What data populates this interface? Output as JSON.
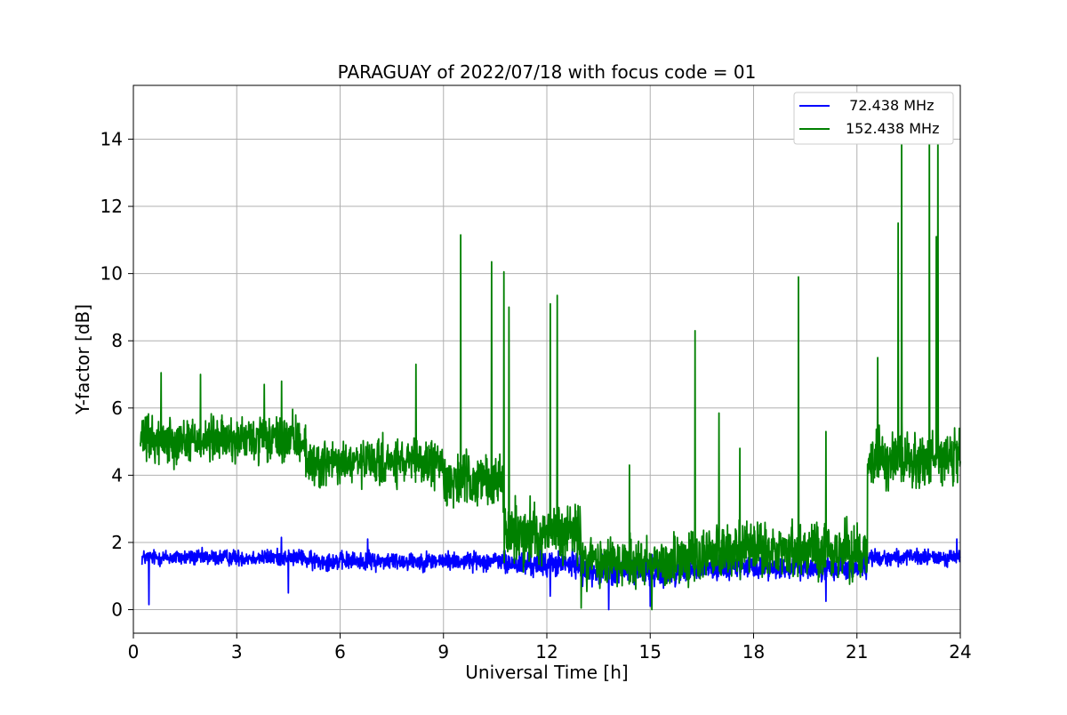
{
  "chart_data": {
    "type": "line",
    "title": "PARAGUAY of 2022/07/18 with focus code = 01",
    "xlabel": "Universal Time [h]",
    "ylabel": "Y-factor [dB]",
    "xlim": [
      0,
      24
    ],
    "ylim": [
      -0.7,
      15.6
    ],
    "xticks": [
      0,
      3,
      6,
      9,
      12,
      15,
      18,
      21,
      24
    ],
    "yticks": [
      0,
      2,
      4,
      6,
      8,
      10,
      12,
      14
    ],
    "grid": true,
    "legend_position": "top-right",
    "series": [
      {
        "name": "  72.438 MHz",
        "color": "#0000ff",
        "baseline_segments": [
          {
            "from": 0.25,
            "to": 5.0,
            "level": 1.55,
            "spread": 0.35
          },
          {
            "from": 5.0,
            "to": 10.8,
            "level": 1.45,
            "spread": 0.4
          },
          {
            "from": 10.8,
            "to": 13.0,
            "level": 1.35,
            "spread": 0.55
          },
          {
            "from": 13.0,
            "to": 16.5,
            "level": 1.15,
            "spread": 0.6
          },
          {
            "from": 16.5,
            "to": 21.3,
            "level": 1.25,
            "spread": 0.5
          },
          {
            "from": 21.3,
            "to": 24.0,
            "level": 1.55,
            "spread": 0.35
          }
        ],
        "spikes": [
          {
            "x": 0.45,
            "y": 0.15
          },
          {
            "x": 4.3,
            "y": 2.15
          },
          {
            "x": 4.5,
            "y": 0.5
          },
          {
            "x": 6.8,
            "y": 2.1
          },
          {
            "x": 12.1,
            "y": 0.4
          },
          {
            "x": 13.8,
            "y": 0.0
          },
          {
            "x": 15.0,
            "y": 0.1
          },
          {
            "x": 21.2,
            "y": 2.1
          },
          {
            "x": 23.9,
            "y": 2.1
          },
          {
            "x": 20.1,
            "y": 0.25
          }
        ]
      },
      {
        "name": "152.438 MHz",
        "color": "#008000",
        "baseline_segments": [
          {
            "from": 0.2,
            "to": 5.0,
            "level": 5.05,
            "spread": 1.0
          },
          {
            "from": 5.0,
            "to": 9.0,
            "level": 4.35,
            "spread": 1.0
          },
          {
            "from": 9.0,
            "to": 10.75,
            "level": 3.85,
            "spread": 1.1
          },
          {
            "from": 10.75,
            "to": 13.0,
            "level": 2.3,
            "spread": 1.3
          },
          {
            "from": 13.0,
            "to": 16.5,
            "level": 1.45,
            "spread": 1.2
          },
          {
            "from": 16.5,
            "to": 21.3,
            "level": 1.75,
            "spread": 1.2
          },
          {
            "from": 21.3,
            "to": 24.0,
            "level": 4.5,
            "spread": 1.2
          }
        ],
        "spikes": [
          {
            "x": 0.8,
            "y": 7.05
          },
          {
            "x": 1.95,
            "y": 7.0
          },
          {
            "x": 3.8,
            "y": 6.7
          },
          {
            "x": 4.3,
            "y": 6.8
          },
          {
            "x": 8.2,
            "y": 7.3
          },
          {
            "x": 9.5,
            "y": 11.15
          },
          {
            "x": 10.4,
            "y": 10.35
          },
          {
            "x": 10.75,
            "y": 10.05
          },
          {
            "x": 10.9,
            "y": 9.0
          },
          {
            "x": 12.1,
            "y": 9.1
          },
          {
            "x": 12.3,
            "y": 9.35
          },
          {
            "x": 14.4,
            "y": 4.3
          },
          {
            "x": 16.3,
            "y": 8.3
          },
          {
            "x": 17.0,
            "y": 5.85
          },
          {
            "x": 17.6,
            "y": 4.8
          },
          {
            "x": 19.3,
            "y": 9.9
          },
          {
            "x": 20.1,
            "y": 5.3
          },
          {
            "x": 21.6,
            "y": 7.5
          },
          {
            "x": 22.2,
            "y": 11.5
          },
          {
            "x": 22.3,
            "y": 14.25
          },
          {
            "x": 23.1,
            "y": 14.75
          },
          {
            "x": 23.35,
            "y": 14.95
          },
          {
            "x": 23.3,
            "y": 11.1
          },
          {
            "x": 13.0,
            "y": 0.05
          },
          {
            "x": 15.05,
            "y": 0.0
          }
        ]
      }
    ]
  }
}
